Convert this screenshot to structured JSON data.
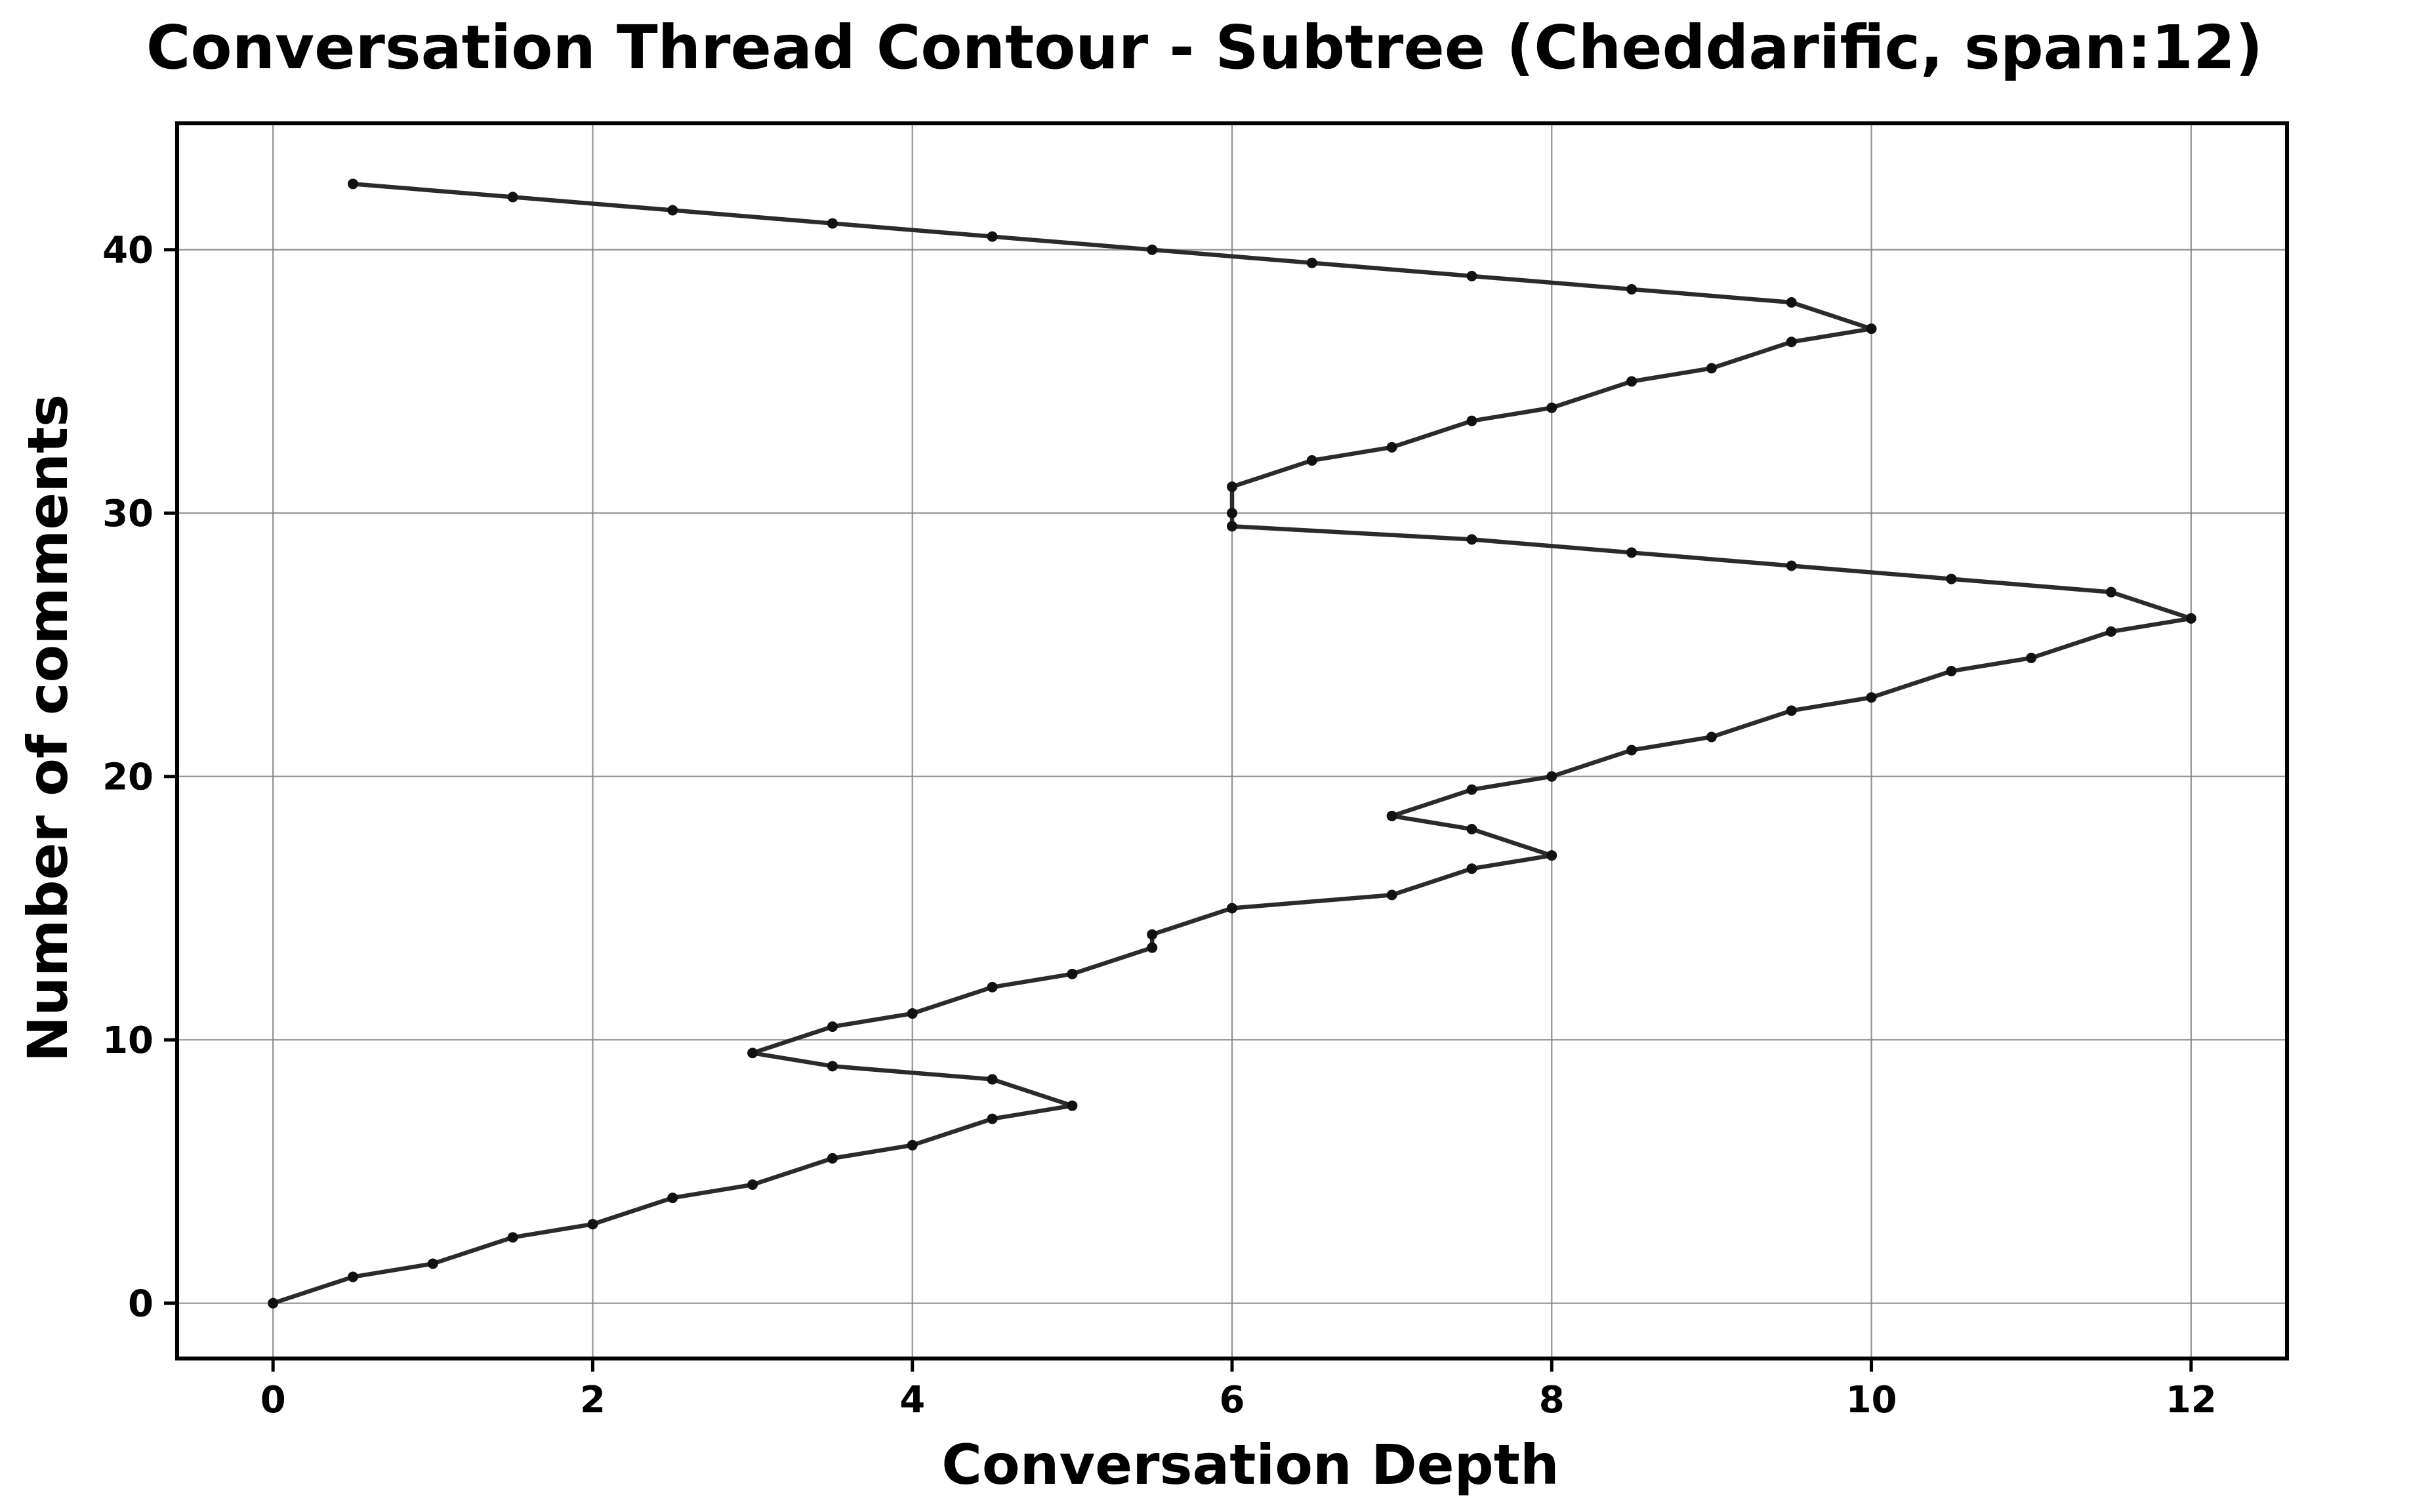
{
  "chart_data": {
    "type": "line",
    "title": "Conversation Thread Contour  - Subtree (Cheddarific, span:12)",
    "xlabel": "Conversation Depth",
    "ylabel": "Number of comments",
    "xlim": [
      -0.6,
      12.6
    ],
    "ylim": [
      -2.1,
      44.8
    ],
    "xticks": [
      0,
      2,
      4,
      6,
      8,
      10,
      12
    ],
    "yticks": [
      0,
      10,
      20,
      30,
      40
    ],
    "xtick_labels": [
      "0",
      "2",
      "4",
      "6",
      "8",
      "10",
      "12"
    ],
    "ytick_labels": [
      "0",
      "10",
      "20",
      "30",
      "40"
    ],
    "grid": true,
    "legend": "none",
    "series": [
      {
        "color": "#2b2b2b",
        "x": [
          0,
          0.5,
          1,
          1.5,
          2,
          2.5,
          3,
          3.5,
          4,
          4.5,
          5,
          4.5,
          3.5,
          3,
          3.5,
          4,
          4.5,
          5,
          5.5,
          5.5,
          6,
          7,
          7.5,
          8,
          7.5,
          7,
          7.5,
          8,
          8.5,
          9,
          9.5,
          10,
          10.5,
          11,
          11.5,
          12,
          11.5,
          10.5,
          9.5,
          8.5,
          7.5,
          6,
          6,
          6,
          6.5,
          7,
          7.5,
          8,
          8.5,
          9,
          9.5,
          10,
          9.5,
          8.5,
          7.5,
          6.5,
          5.5,
          4.5,
          3.5,
          2.5,
          1.5,
          0.5
        ],
        "y": [
          0,
          1,
          1.5,
          2.5,
          3,
          4,
          4.5,
          5.5,
          6,
          7,
          7.5,
          8.5,
          9,
          9.5,
          10.5,
          11,
          12,
          12.5,
          13.5,
          14,
          15,
          15.5,
          16.5,
          17,
          18,
          18.5,
          19.5,
          20,
          21,
          21.5,
          22.5,
          23,
          24,
          24.5,
          25.5,
          26,
          27,
          27.5,
          28,
          28.5,
          29,
          29.5,
          30,
          31,
          32,
          32.5,
          33.5,
          34,
          35,
          35.5,
          36.5,
          37,
          38,
          38.5,
          39,
          39.5,
          40,
          40.5,
          41,
          41.5,
          42,
          42.5
        ]
      }
    ]
  }
}
